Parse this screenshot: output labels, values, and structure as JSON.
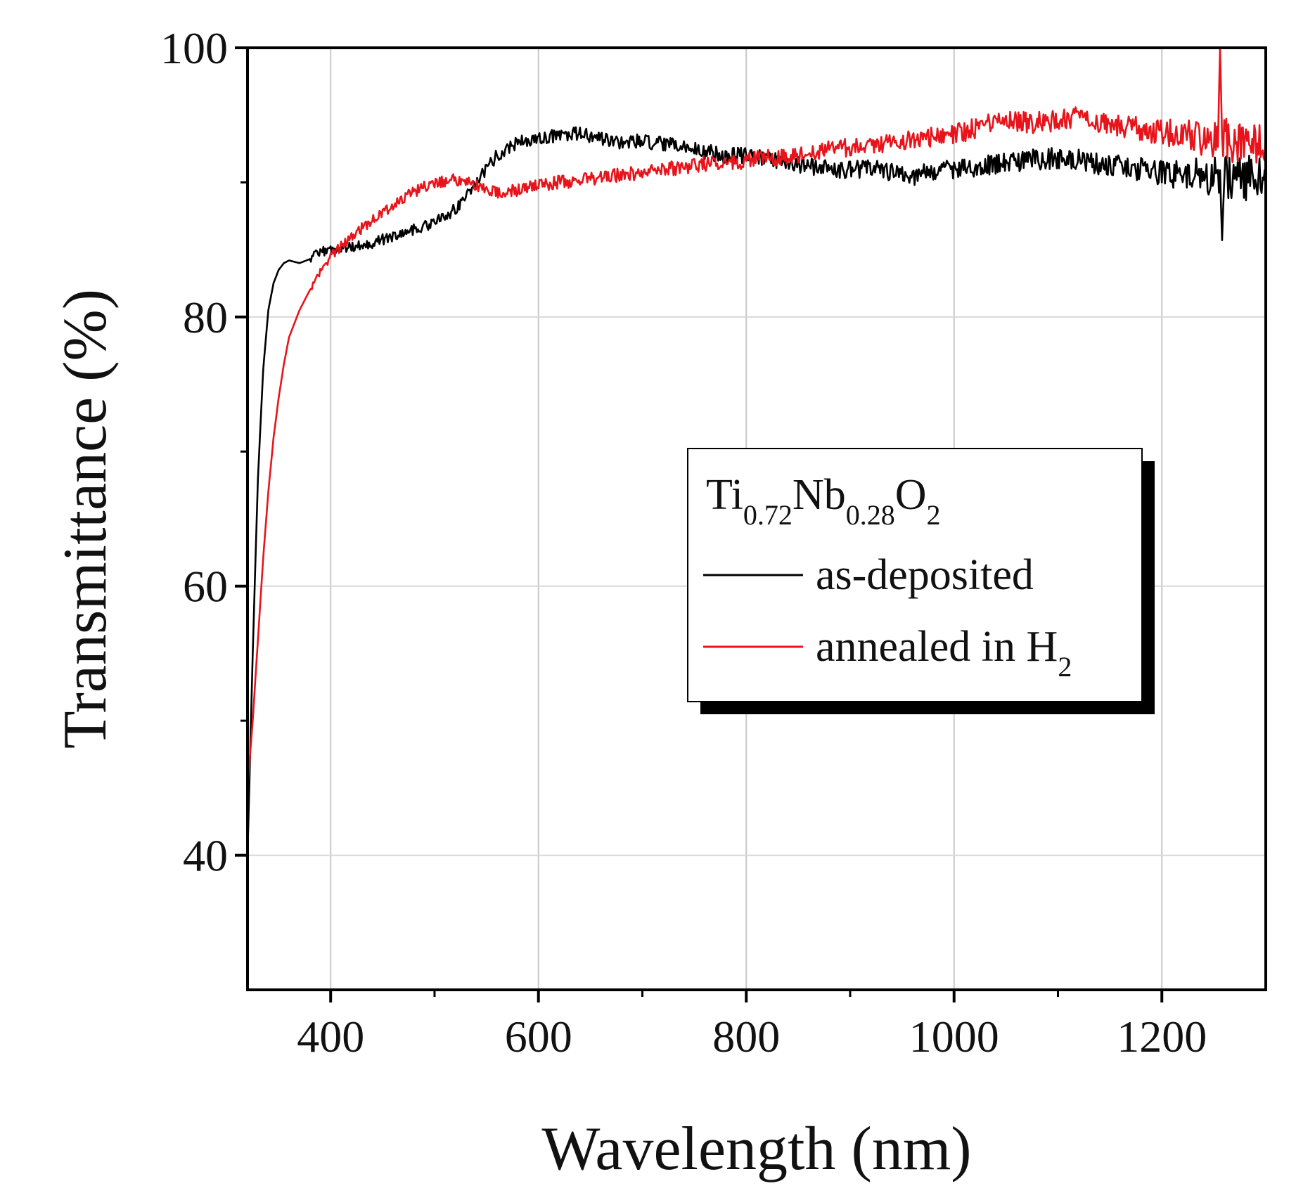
{
  "chart_data": {
    "type": "line",
    "xlabel": "Wavelength (nm)",
    "ylabel": "Transmittance (%)",
    "xlim": [
      320,
      1300
    ],
    "ylim": [
      30,
      100
    ],
    "x_ticks": [
      400,
      600,
      800,
      1000,
      1200
    ],
    "y_ticks": [
      40,
      60,
      80,
      100
    ],
    "grid": true,
    "legend_position": "center-right",
    "legend_title": {
      "parts": [
        {
          "text": "Ti",
          "sub": false
        },
        {
          "text": "0.72",
          "sub": true
        },
        {
          "text": "Nb",
          "sub": false
        },
        {
          "text": "0.28",
          "sub": true
        },
        {
          "text": "O",
          "sub": false
        },
        {
          "text": "2",
          "sub": true
        }
      ]
    },
    "series": [
      {
        "name": "as-deposited",
        "label_parts": [
          {
            "text": "as-deposited",
            "sub": false
          }
        ],
        "color": "#000000",
        "x": [
          320,
          325,
          330,
          335,
          340,
          345,
          350,
          355,
          360,
          370,
          380,
          390,
          400,
          420,
          440,
          460,
          480,
          500,
          520,
          540,
          560,
          580,
          600,
          620,
          640,
          660,
          680,
          700,
          720,
          740,
          760,
          780,
          800,
          820,
          840,
          860,
          880,
          900,
          920,
          940,
          960,
          980,
          1000,
          1020,
          1040,
          1060,
          1080,
          1100,
          1120,
          1140,
          1160,
          1180,
          1200,
          1220,
          1240,
          1260,
          1280,
          1300
        ],
        "y": [
          40,
          55,
          68,
          76,
          80.5,
          82.5,
          83.5,
          84,
          84.2,
          84,
          84.3,
          84.8,
          85,
          85.2,
          85.5,
          86,
          86.5,
          87,
          88,
          90,
          92,
          93,
          93.2,
          93.5,
          93.6,
          93.2,
          93,
          93,
          92.8,
          92.6,
          92.3,
          92,
          92,
          91.8,
          91.5,
          91.2,
          91,
          91,
          91,
          90.8,
          90.5,
          90.8,
          91,
          91.2,
          91.4,
          91.5,
          91.7,
          91.8,
          91.6,
          91.4,
          91.2,
          91,
          90.8,
          90.6,
          90.4,
          90.4,
          90.3,
          90.3
        ],
        "features": [
          {
            "x": 1258,
            "y": 85.7
          }
        ]
      },
      {
        "name": "annealed in H2",
        "label_parts": [
          {
            "text": "annealed in H",
            "sub": false
          },
          {
            "text": "2",
            "sub": true
          }
        ],
        "color": "#e8141b",
        "x": [
          320,
          325,
          330,
          335,
          340,
          345,
          350,
          355,
          360,
          370,
          380,
          390,
          400,
          420,
          440,
          460,
          480,
          500,
          520,
          540,
          560,
          580,
          600,
          620,
          640,
          660,
          680,
          700,
          720,
          740,
          760,
          780,
          800,
          820,
          840,
          860,
          880,
          900,
          920,
          940,
          960,
          980,
          1000,
          1020,
          1040,
          1060,
          1080,
          1100,
          1120,
          1140,
          1160,
          1180,
          1200,
          1220,
          1240,
          1260,
          1280,
          1300
        ],
        "y": [
          45,
          50,
          56,
          62,
          67,
          71,
          74,
          76.5,
          78.5,
          80.5,
          82,
          83.3,
          84.5,
          86,
          87.2,
          88.3,
          89.3,
          90,
          90.2,
          89.8,
          89.2,
          89.4,
          89.8,
          90,
          90.2,
          90.4,
          90.5,
          90.8,
          91,
          91.2,
          91.4,
          91.5,
          91.6,
          91.8,
          92,
          92.2,
          92.4,
          92.6,
          92.8,
          93,
          93.2,
          93.4,
          93.6,
          94,
          94.5,
          94.6,
          94.4,
          94.7,
          94.8,
          94.5,
          94.2,
          94,
          93.8,
          93.5,
          93.3,
          93.2,
          93.1,
          93
        ],
        "features": [
          {
            "x": 1256,
            "y": 100
          },
          {
            "x": 1268,
            "y": 91.5
          }
        ]
      }
    ]
  }
}
